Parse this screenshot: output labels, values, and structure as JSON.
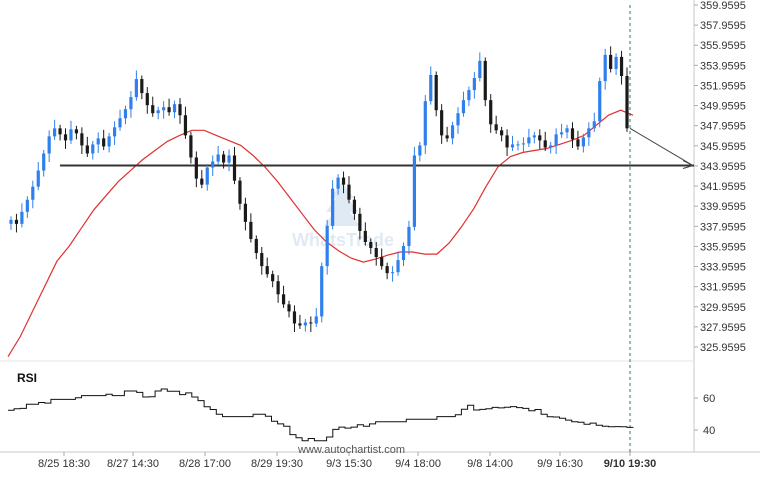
{
  "chart_data": {
    "type": "candlestick",
    "title": "",
    "price_axis_ticks": [
      "359.9595",
      "357.9595",
      "355.9595",
      "353.9595",
      "351.9595",
      "349.9595",
      "347.9595",
      "345.9595",
      "343.9595",
      "341.9595",
      "339.9595",
      "337.9595",
      "335.9595",
      "333.9595",
      "331.9595",
      "329.9595",
      "327.9595",
      "325.9595"
    ],
    "ylim": [
      324.0,
      360.3
    ],
    "support_level": 344.0,
    "forecast_target": 344.0,
    "x_labels": [
      "8/25 18:30",
      "8/27 14:30",
      "8/28 17:00",
      "8/29 19:30",
      "9/3 15:30",
      "9/4 18:00",
      "9/8 14:00",
      "9/9 16:30",
      "9/10 19:30"
    ],
    "last_label": "9/10 19:30",
    "candles_close": [
      338.6,
      338.2,
      339.4,
      340.6,
      341.9,
      343.5,
      345.2,
      346.9,
      347.7,
      347.1,
      346.5,
      347.6,
      347.2,
      346.0,
      345.2,
      346.1,
      346.7,
      345.9,
      346.9,
      347.8,
      348.7,
      349.6,
      350.8,
      352.6,
      351.2,
      350.0,
      349.2,
      349.5,
      349.8,
      349.3,
      350.1,
      349.0,
      347.0,
      344.8,
      342.7,
      342.1,
      343.8,
      344.4,
      345.1,
      344.3,
      345.0,
      342.5,
      340.2,
      338.4,
      336.7,
      335.3,
      334.0,
      333.2,
      332.5,
      331.2,
      330.2,
      329.5,
      328.3,
      328.1,
      328.4,
      328.3,
      329.0,
      334.0,
      338.0,
      341.7,
      342.8,
      342.1,
      340.6,
      339.2,
      337.5,
      336.4,
      335.8,
      334.9,
      334.0,
      333.3,
      333.4,
      334.6,
      336.0,
      337.9,
      345.0,
      346.0,
      350.4,
      353.0,
      349.5,
      347.0,
      346.7,
      348.0,
      349.2,
      350.5,
      351.5,
      352.7,
      354.4,
      350.5,
      348.1,
      347.5,
      347.0,
      345.8,
      346.1,
      346.1,
      346.2,
      346.8,
      347.0,
      346.5,
      345.8,
      346.0,
      347.1,
      347.3,
      347.7,
      346.6,
      345.9,
      346.8,
      347.7,
      348.4,
      352.4,
      355.0,
      353.6,
      354.8,
      352.9,
      347.7
    ],
    "ma_values": [
      325.0,
      327.0,
      329.5,
      332.0,
      334.5,
      336.0,
      337.8,
      339.6,
      341.0,
      342.4,
      343.5,
      344.6,
      345.5,
      346.4,
      347.0,
      347.5,
      347.5,
      347.0,
      346.5,
      346.0,
      345.0,
      343.8,
      342.4,
      340.8,
      339.2,
      337.6,
      336.4,
      335.5,
      334.8,
      334.4,
      334.7,
      335.1,
      335.4,
      335.4,
      335.2,
      335.2,
      336.3,
      337.9,
      339.7,
      341.9,
      343.9,
      344.9,
      345.3,
      345.5,
      345.7,
      346.1,
      346.5,
      347.0,
      348.0,
      349.0,
      349.5,
      349.0
    ],
    "legend": "",
    "grid": false
  },
  "rsi": {
    "label": "RSI",
    "ticks": [
      "60",
      "40"
    ],
    "values": [
      52.3,
      53.3,
      53.5,
      56.1,
      56.1,
      57.2,
      56.8,
      59.1,
      59.1,
      59.1,
      59.1,
      60.1,
      61.5,
      61.5,
      61.5,
      61.5,
      62.4,
      61.5,
      61.5,
      64.4,
      64.4,
      63.5,
      60.6,
      60.8,
      64.4,
      65.6,
      64.2,
      64.2,
      62.1,
      63.2,
      60.6,
      58.4,
      54.5,
      52.8,
      49.9,
      48.4,
      48.4,
      48.4,
      48.4,
      48.4,
      49.9,
      49.9,
      48.6,
      45.5,
      43.8,
      42.4,
      37.1,
      35.1,
      33.3,
      34.7,
      33.3,
      33.3,
      35.6,
      40.4,
      41.8,
      41.2,
      41.8,
      43.3,
      42.4,
      43.8,
      45.1,
      45.1,
      45.1,
      45.1,
      45.1,
      46.7,
      46.7,
      46.7,
      46.7,
      46.7,
      48.4,
      48.4,
      48.4,
      49.5,
      53.0,
      55.5,
      52.5,
      52.9,
      53.3,
      54.1,
      53.8,
      54.2,
      54.6,
      54.0,
      53.5,
      52.0,
      52.8,
      49.8,
      48.3,
      48.1,
      47.4,
      46.2,
      45.1,
      44.9,
      43.6,
      44.3,
      43.0,
      42.3,
      42.0,
      42.1,
      42.0,
      41.6,
      41.9
    ]
  },
  "watermark": "www.autochartist.com"
}
